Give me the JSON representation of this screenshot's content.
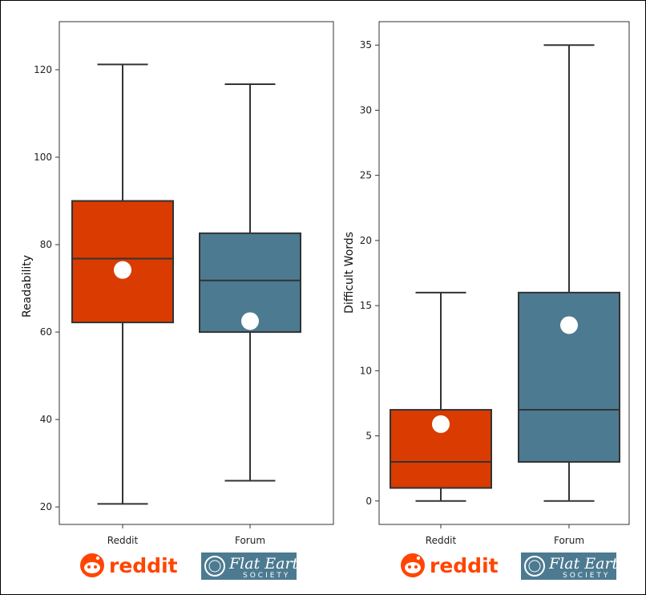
{
  "chart_data": [
    {
      "type": "box",
      "ylabel": "Readability",
      "categories": [
        "Reddit",
        "Forum"
      ],
      "ylim": [
        16,
        131
      ],
      "yticks": [
        20,
        40,
        60,
        80,
        100,
        120
      ],
      "colors": [
        "#d93b00",
        "#4c7a91"
      ],
      "boxes": [
        {
          "category": "Reddit",
          "whisker_low": 20.7,
          "q1": 62.2,
          "median": 76.8,
          "q3": 90.0,
          "whisker_high": 121.2,
          "mean": 74.2
        },
        {
          "category": "Forum",
          "whisker_low": 26.0,
          "q1": 60.0,
          "median": 71.8,
          "q3": 82.6,
          "whisker_high": 116.7,
          "mean": 62.5
        }
      ]
    },
    {
      "type": "box",
      "ylabel": "Difficult Words",
      "categories": [
        "Reddit",
        "Forum"
      ],
      "ylim": [
        -1.8,
        36.8
      ],
      "yticks": [
        0,
        5,
        10,
        15,
        20,
        25,
        30,
        35
      ],
      "colors": [
        "#d93b00",
        "#4c7a91"
      ],
      "boxes": [
        {
          "category": "Reddit",
          "whisker_low": 0,
          "q1": 1,
          "median": 3,
          "q3": 7,
          "whisker_high": 16,
          "mean": 5.9
        },
        {
          "category": "Forum",
          "whisker_low": 0,
          "q1": 3,
          "median": 7,
          "q3": 16,
          "whisker_high": 35,
          "mean": 13.5
        }
      ]
    }
  ],
  "logos": {
    "reddit_text": "reddit",
    "flat_earth_text": "Flat Earth",
    "flat_earth_sub": "SOCIETY"
  }
}
